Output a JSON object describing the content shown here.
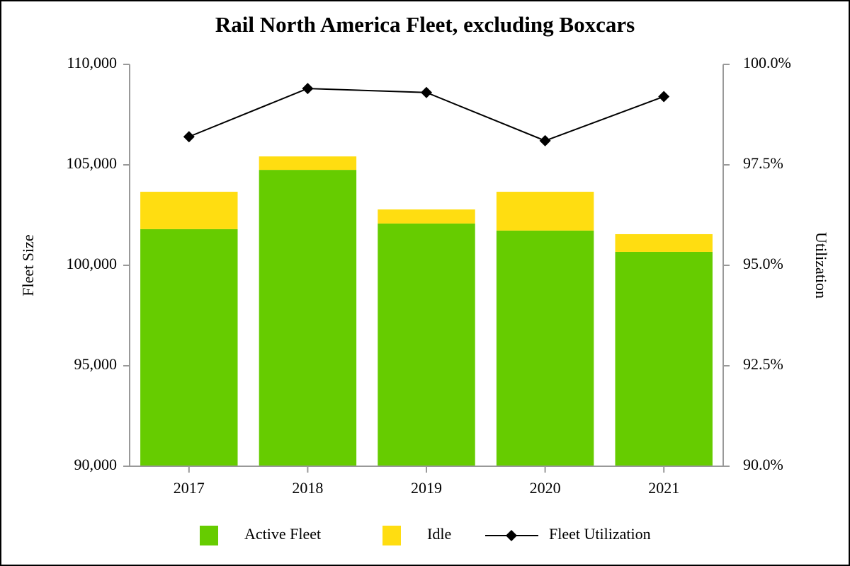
{
  "chart_data": {
    "type": "bar",
    "title": "Rail North America Fleet, excluding Boxcars",
    "categories": [
      "2017",
      "2018",
      "2019",
      "2020",
      "2021"
    ],
    "ylabel": "Fleet Size",
    "y2label": "Utilization",
    "ylim": [
      90000,
      110000
    ],
    "yticks": [
      {
        "value": 90000,
        "label": "90,000"
      },
      {
        "value": 95000,
        "label": "95,000"
      },
      {
        "value": 100000,
        "label": "100,000"
      },
      {
        "value": 105000,
        "label": "105,000"
      },
      {
        "value": 110000,
        "label": "110,000"
      }
    ],
    "y2lim": [
      90,
      100
    ],
    "y2ticks": [
      {
        "value": 90,
        "label": "90.0%"
      },
      {
        "value": 92.5,
        "label": "92.5%"
      },
      {
        "value": 95,
        "label": "95.0%"
      },
      {
        "value": 97.5,
        "label": "97.5%"
      },
      {
        "value": 100,
        "label": "100.0%"
      }
    ],
    "stacked": true,
    "series": [
      {
        "name": "Active Fleet",
        "color": "#66cc00",
        "values": [
          101800,
          104750,
          102080,
          101730,
          100670
        ]
      },
      {
        "name": "Idle",
        "color": "#ffdd11",
        "values": [
          1860,
          670,
          700,
          1930,
          880
        ]
      },
      {
        "name": "Fleet Utilization",
        "color": "#000000",
        "type": "line",
        "axis": "y2",
        "values": [
          98.2,
          99.4,
          99.3,
          98.1,
          99.2
        ]
      }
    ]
  }
}
